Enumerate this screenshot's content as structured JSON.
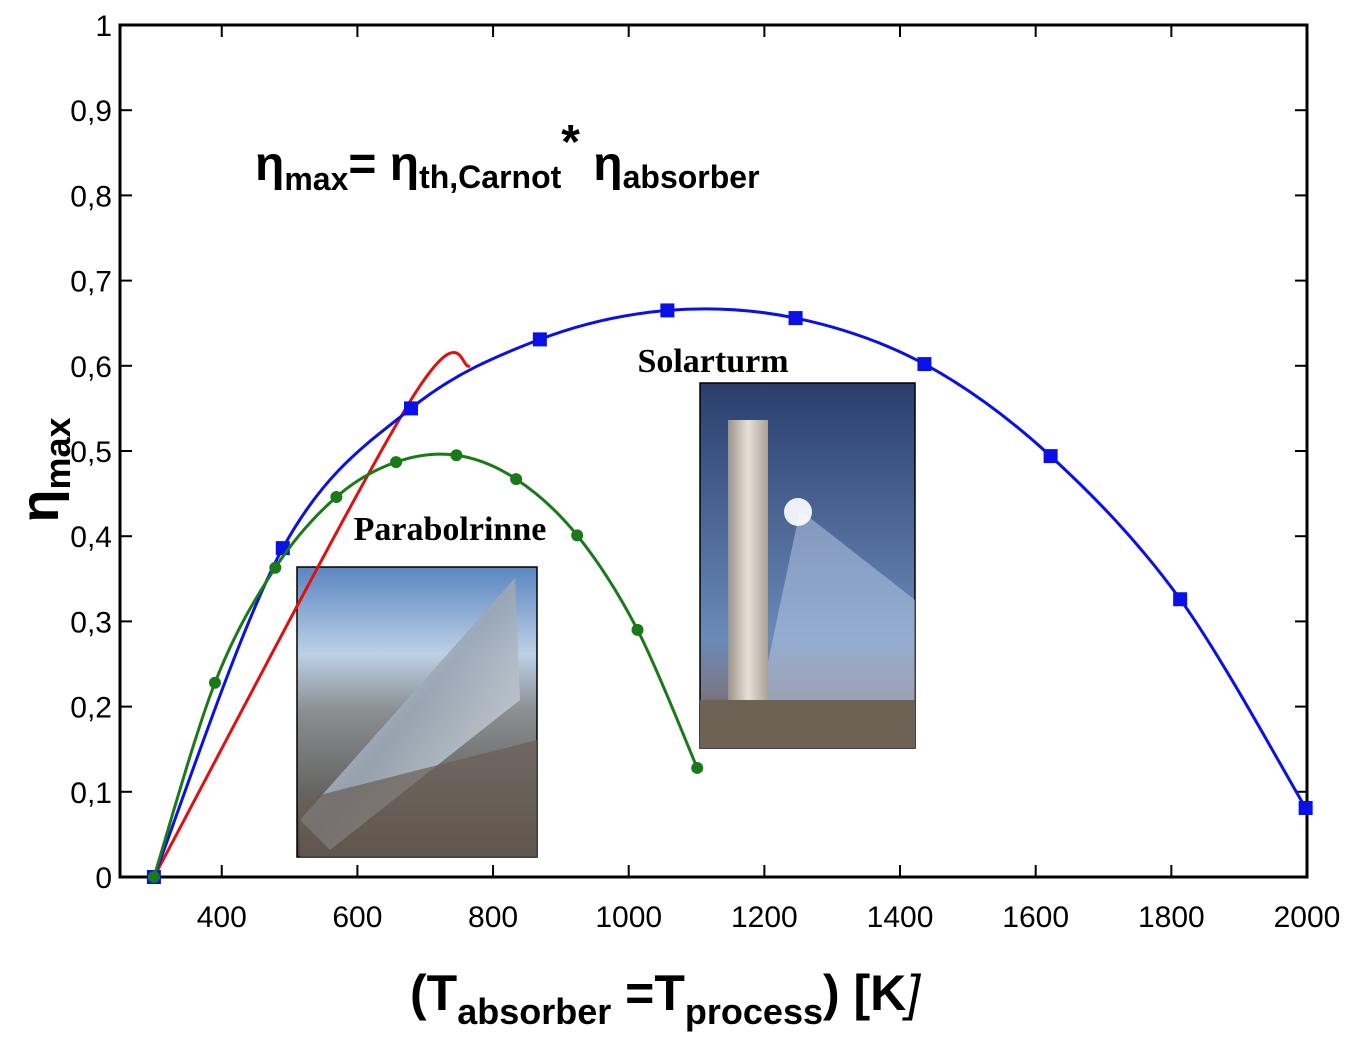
{
  "chart_data": {
    "type": "line",
    "formula": {
      "parts": [
        "η",
        "max",
        "= η",
        "th,Carnot",
        "*",
        " η",
        "absorber"
      ]
    },
    "x_label": {
      "parts": [
        "(T",
        "absorber",
        " =T",
        "process",
        ") [K",
        "]"
      ]
    },
    "y_label": {
      "parts": [
        "η",
        "max"
      ]
    },
    "annotations": [
      "Solarturm",
      "Parabolrinne"
    ],
    "xlim": [
      250,
      2000
    ],
    "xticks": [
      400,
      600,
      800,
      1000,
      1200,
      1400,
      1600,
      1800,
      2000
    ],
    "ylim": [
      0,
      1
    ],
    "yticks": [
      0,
      {
        "value": 0.1,
        "label": "0,1"
      },
      {
        "value": 0.2,
        "label": "0,2"
      },
      {
        "value": 0.3,
        "label": "0,3"
      },
      {
        "value": 0.4,
        "label": "0,4"
      },
      {
        "value": 0.5,
        "label": "0,5"
      },
      {
        "value": 0.6,
        "label": "0,6"
      },
      {
        "value": 0.7,
        "label": "0,7"
      },
      {
        "value": 0.8,
        "label": "0,8"
      },
      {
        "value": 0.9,
        "label": "0,9"
      },
      1
    ],
    "series": [
      {
        "color": "#e01010",
        "marker": "none",
        "x": [
          300,
          679,
          766
        ],
        "values": [
          0,
          0.56,
          0.6
        ]
      },
      {
        "color": "#0a10e8",
        "marker": "square",
        "x": [
          300,
          490,
          679,
          869,
          1057,
          1246,
          1436,
          1622,
          1813,
          1998
        ],
        "values": [
          0,
          0.386,
          0.55,
          0.631,
          0.665,
          0.656,
          0.602,
          0.494,
          0.326,
          0.081
        ]
      },
      {
        "color": "#1a7a1a",
        "marker": "circle",
        "x": [
          300,
          390,
          479,
          569,
          657,
          746,
          834,
          924,
          1013,
          1101
        ],
        "values": [
          0,
          0.228,
          0.363,
          0.446,
          0.487,
          0.495,
          0.467,
          0.401,
          0.29,
          0.128
        ]
      }
    ]
  }
}
